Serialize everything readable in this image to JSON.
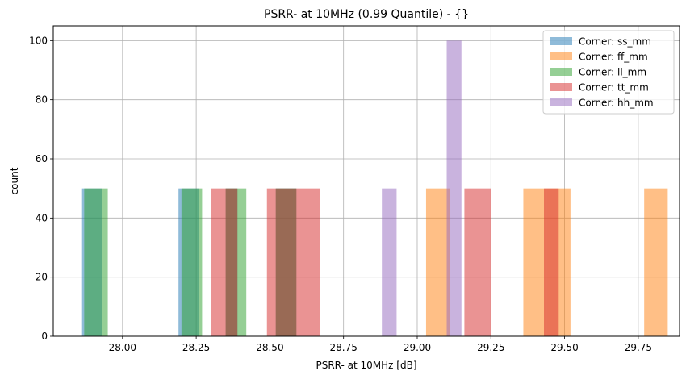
{
  "chart_data": {
    "type": "histogram",
    "title": "PSRR- at 10MHz (0.99 Quantile) - {}",
    "xlabel": "PSRR- at 10MHz [dB]",
    "ylabel": "count",
    "xlim": [
      27.765,
      29.89
    ],
    "ylim": [
      0,
      105
    ],
    "x_ticks": [
      28.0,
      28.25,
      28.5,
      28.75,
      29.0,
      29.25,
      29.5,
      29.75
    ],
    "x_tick_labels": [
      "28.00",
      "28.25",
      "28.50",
      "28.75",
      "29.00",
      "29.25",
      "29.50",
      "29.75"
    ],
    "y_ticks": [
      0,
      20,
      40,
      60,
      80,
      100
    ],
    "y_tick_labels": [
      "0",
      "20",
      "40",
      "60",
      "80",
      "100"
    ],
    "grid": true,
    "legend_position": "top-right",
    "bar_alpha": 0.5,
    "series": [
      {
        "name": "Corner: ss_mm",
        "color": "#1f77b4",
        "bins": [
          [
            27.86,
            27.93,
            50
          ],
          [
            28.19,
            28.26,
            50
          ],
          [
            28.35,
            28.39,
            50
          ],
          [
            28.52,
            28.59,
            50
          ]
        ]
      },
      {
        "name": "Corner: ff_mm",
        "color": "#ff7f0e",
        "bins": [
          [
            29.03,
            29.11,
            50
          ],
          [
            29.36,
            29.44,
            50
          ],
          [
            29.44,
            29.52,
            50
          ],
          [
            29.77,
            29.85,
            50
          ]
        ]
      },
      {
        "name": "Corner: ll_mm",
        "color": "#2ca02c",
        "bins": [
          [
            27.87,
            27.95,
            50
          ],
          [
            28.2,
            28.27,
            50
          ],
          [
            28.35,
            28.42,
            50
          ],
          [
            28.52,
            28.59,
            50
          ]
        ]
      },
      {
        "name": "Corner: tt_mm",
        "color": "#d62728",
        "bins": [
          [
            28.3,
            28.39,
            50
          ],
          [
            28.49,
            28.58,
            50
          ],
          [
            28.58,
            28.67,
            50
          ],
          [
            29.16,
            29.25,
            50
          ],
          [
            29.43,
            29.48,
            50
          ]
        ]
      },
      {
        "name": "Corner: hh_mm",
        "color": "#9467bd",
        "bins": [
          [
            28.88,
            28.93,
            50
          ],
          [
            29.1,
            29.15,
            100
          ]
        ]
      }
    ]
  }
}
